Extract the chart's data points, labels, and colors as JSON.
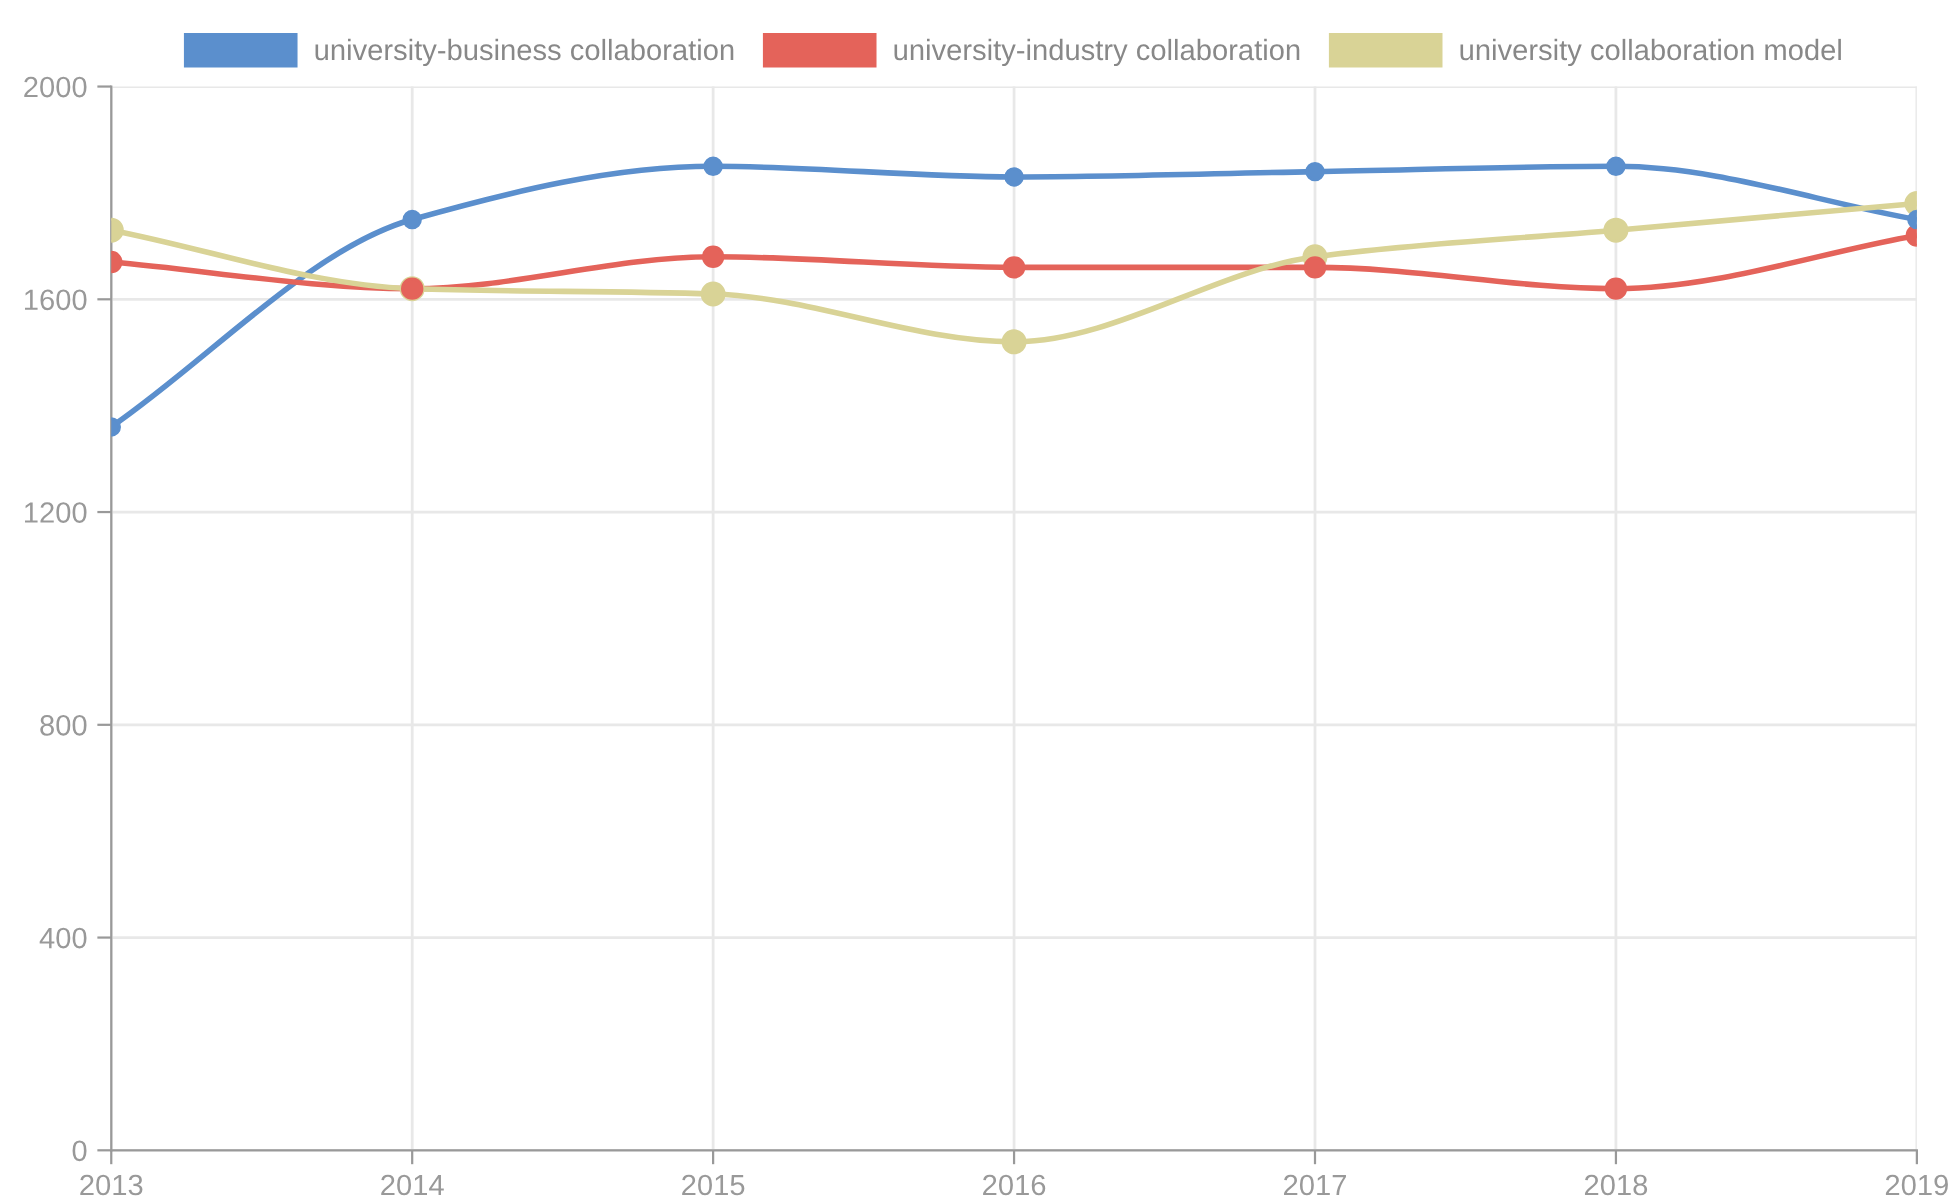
{
  "chart_data": {
    "type": "line",
    "x": [
      2013,
      2014,
      2015,
      2016,
      2017,
      2018,
      2019
    ],
    "xlim": [
      2013,
      2019
    ],
    "xticks": [
      2013,
      2014,
      2015,
      2016,
      2017,
      2018,
      2019
    ],
    "ylim": [
      0,
      2000
    ],
    "yticks": [
      0,
      400,
      800,
      1200,
      1600,
      2000
    ],
    "grid": true,
    "legend": "top",
    "marker": "circle",
    "line_style": "solid",
    "series": [
      {
        "name": "university-business collaboration",
        "color": "#5b8fcd",
        "values": [
          1360,
          1750,
          1850,
          1830,
          1840,
          1850,
          1750
        ]
      },
      {
        "name": "university-industry collaboration",
        "color": "#e4635a",
        "values": [
          1670,
          1620,
          1680,
          1660,
          1660,
          1620,
          1720
        ]
      },
      {
        "name": "university collaboration model",
        "color": "#d9d396",
        "values": [
          1730,
          1620,
          1610,
          1520,
          1680,
          1730,
          1780
        ]
      }
    ]
  }
}
